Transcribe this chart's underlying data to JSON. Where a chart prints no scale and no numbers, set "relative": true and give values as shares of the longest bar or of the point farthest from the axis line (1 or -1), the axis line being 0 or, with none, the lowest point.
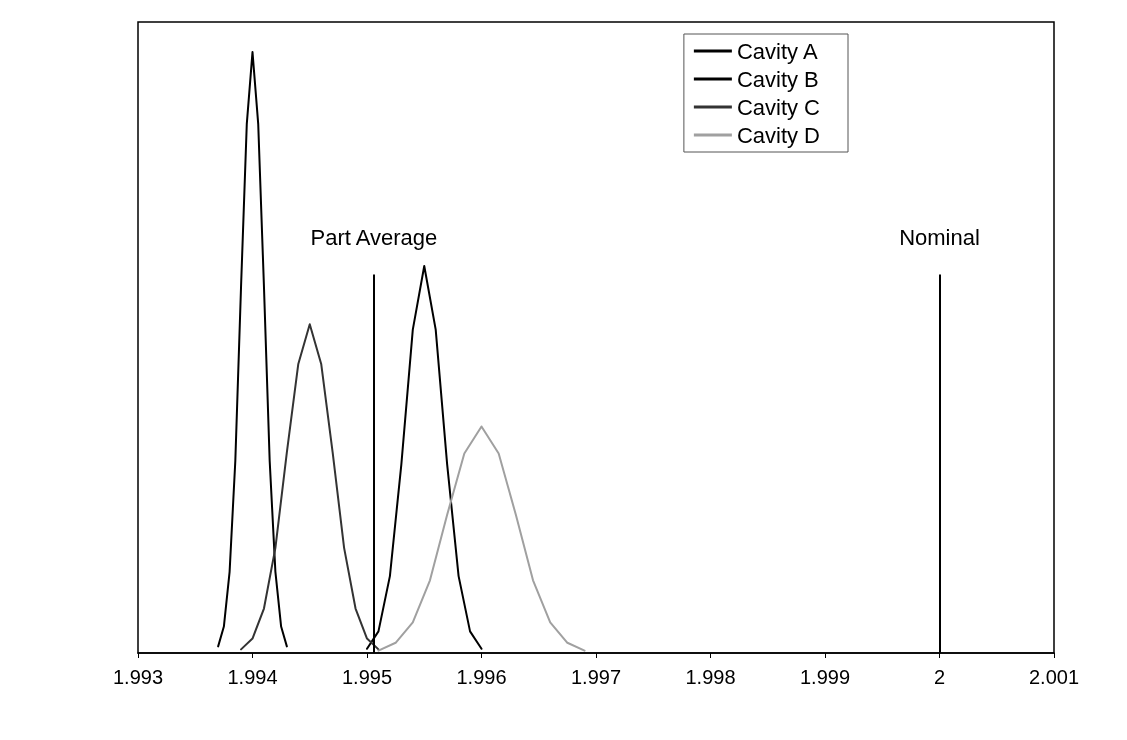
{
  "chart_data": {
    "type": "line",
    "relative": true,
    "xlim": [
      1.993,
      2.001
    ],
    "xticks": [
      1.993,
      1.994,
      1.995,
      1.996,
      1.997,
      1.998,
      1.999,
      2,
      2.001
    ],
    "grid": false,
    "legend": "top right",
    "marker": "none",
    "line_style": "solid",
    "series": [
      {
        "name": "Cavity A",
        "color": "#000000",
        "x": [
          1.9937,
          1.99375,
          1.9938,
          1.99385,
          1.9939,
          1.99395,
          1.994,
          1.99405,
          1.9941,
          1.99415,
          1.9942,
          1.99425,
          1.9943
        ],
        "values": [
          0.011,
          0.044,
          0.135,
          0.32,
          0.61,
          0.88,
          1,
          0.88,
          0.61,
          0.32,
          0.135,
          0.044,
          0.011
        ]
      },
      {
        "name": "Cavity B",
        "color": "#000000",
        "x": [
          1.995,
          1.9951,
          1.9952,
          1.9953,
          1.9954,
          1.9955,
          1.9956,
          1.9957,
          1.9958,
          1.9959,
          1.996
        ],
        "values": [
          0.007,
          0.036,
          0.128,
          0.314,
          0.538,
          0.644,
          0.538,
          0.314,
          0.128,
          0.036,
          0.007
        ]
      },
      {
        "name": "Cavity C",
        "color": "#333333",
        "x": [
          1.9939,
          1.994,
          1.9941,
          1.9942,
          1.9943,
          1.9944,
          1.9945,
          1.9946,
          1.9947,
          1.9948,
          1.9949,
          1.995,
          1.9951
        ],
        "values": [
          0.006,
          0.024,
          0.074,
          0.175,
          0.334,
          0.481,
          0.547,
          0.481,
          0.334,
          0.175,
          0.074,
          0.024,
          0.006
        ]
      },
      {
        "name": "Cavity D",
        "color": "#a0a0a0",
        "x": [
          1.9951,
          1.99525,
          1.9954,
          1.99555,
          1.9957,
          1.99585,
          1.996,
          1.99615,
          1.9963,
          1.99645,
          1.9966,
          1.99675,
          1.9969
        ],
        "values": [
          0.004,
          0.017,
          0.051,
          0.121,
          0.23,
          0.332,
          0.377,
          0.332,
          0.23,
          0.121,
          0.051,
          0.017,
          0.004
        ]
      }
    ],
    "ref_lines": [
      {
        "axis": "x",
        "value": 1.99506,
        "label": "Part Average",
        "color": "#000000",
        "line_style": "solid"
      },
      {
        "axis": "x",
        "value": 2,
        "label": "Nominal",
        "color": "#000000",
        "line_style": "solid"
      }
    ]
  }
}
